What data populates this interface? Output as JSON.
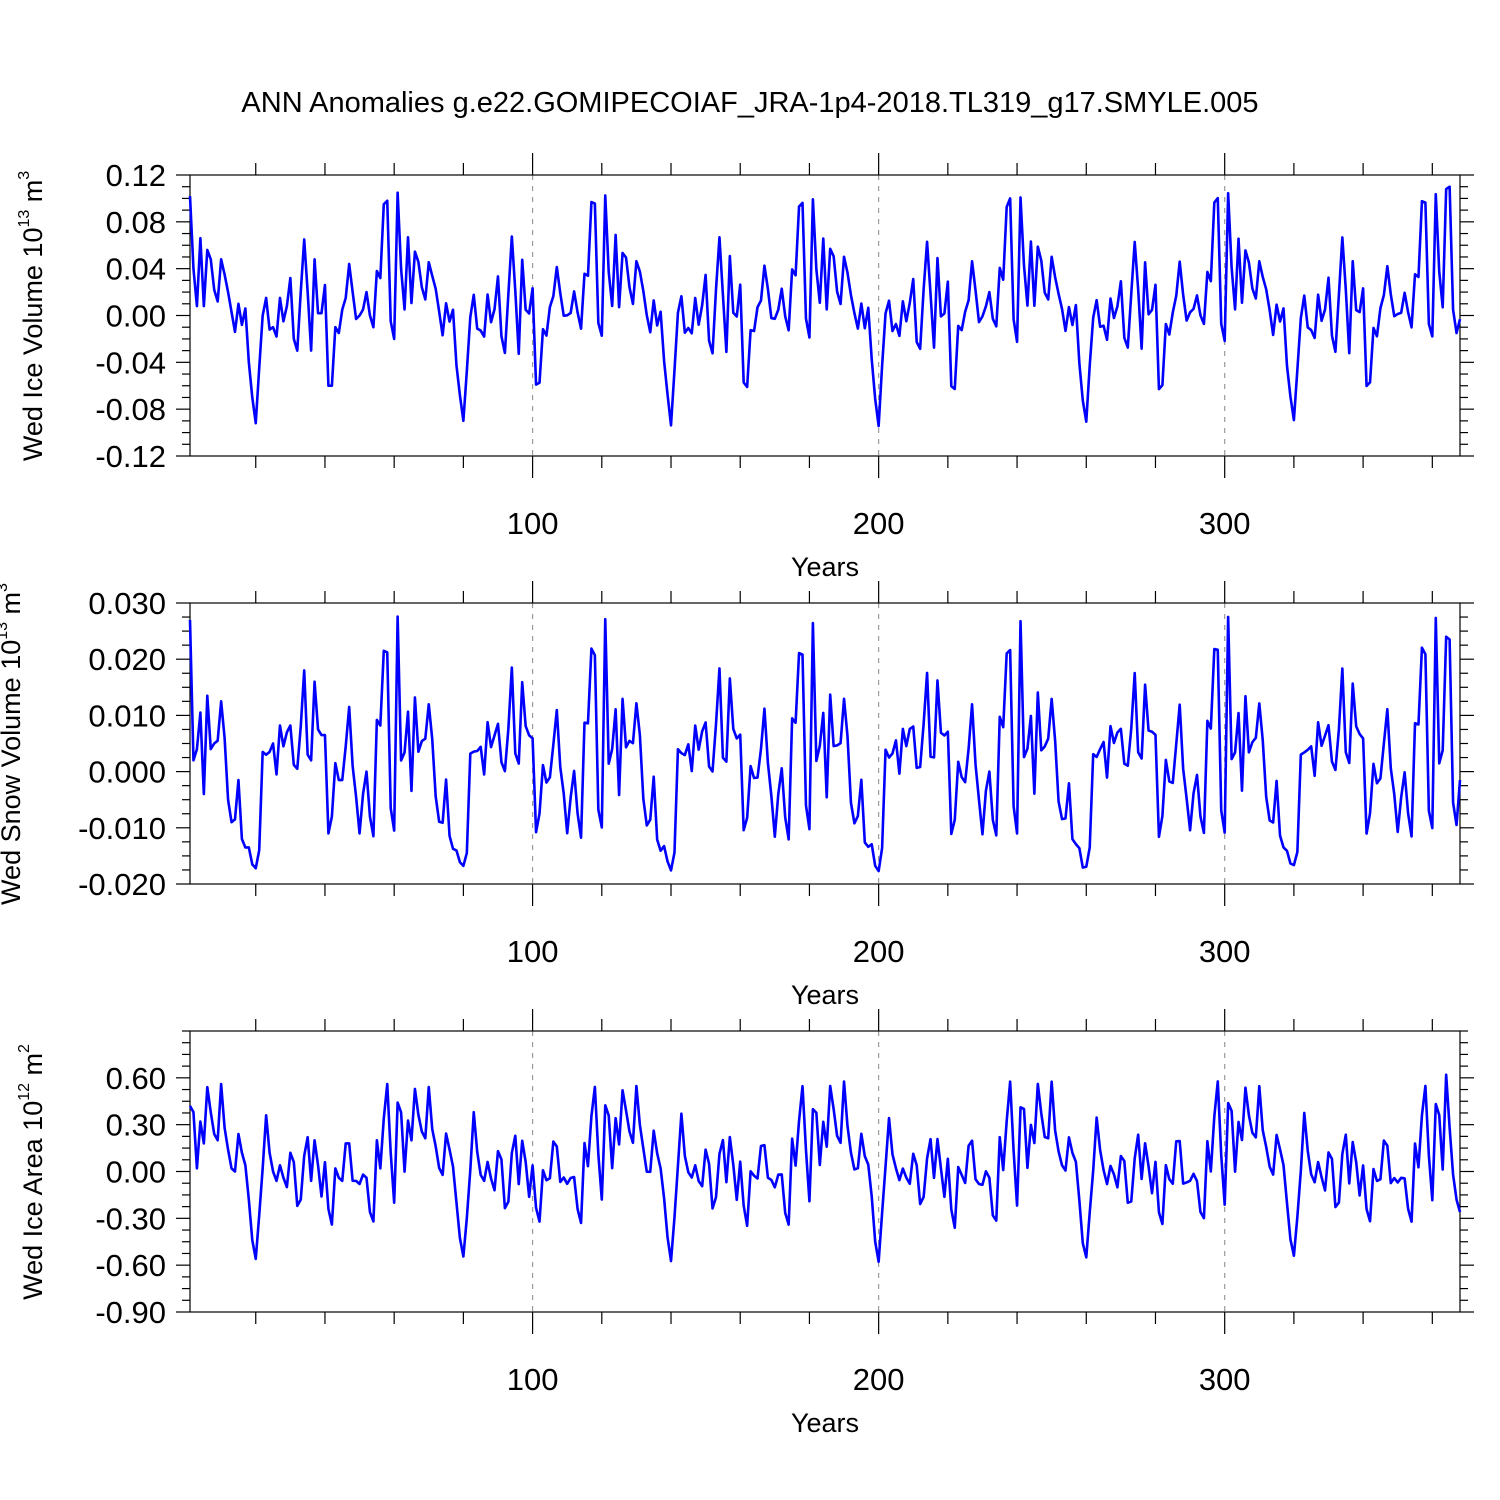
{
  "title": "ANN Anomalies g.e22.GOMIPECOIAF_JRA-1p4-2018.TL319_g17.SMYLE.005",
  "colors": {
    "line": "#0000ff",
    "axis": "#000000",
    "grid": "#9a9a9a"
  },
  "x_axis": {
    "range": [
      1,
      368
    ],
    "ticks": [
      100,
      200,
      300
    ],
    "tick_labels": [
      "100",
      "200",
      "300"
    ],
    "label": "Years"
  },
  "chart_data": [
    {
      "type": "line",
      "name": "Wed Ice Volume",
      "ylabel": {
        "text": "Wed Ice Volume 10",
        "exp": "13",
        "unit": " m",
        "unit_exp": "3"
      },
      "xlabel": "Years",
      "ylim": [
        -0.12,
        0.12
      ],
      "yticks": [
        -0.12,
        -0.08,
        -0.04,
        0.0,
        0.04,
        0.08,
        0.12
      ],
      "ytick_labels": [
        "-0.12",
        "-0.08",
        "-0.04",
        "0.00",
        "0.04",
        "0.08",
        "0.12"
      ],
      "segment": [
        0.102,
        0.04,
        0.008,
        0.066,
        0.008,
        0.056,
        0.048,
        0.022,
        0.012,
        0.048,
        0.035,
        0.02,
        0.003,
        -0.014,
        0.01,
        -0.008,
        0.006,
        -0.04,
        -0.07,
        -0.092,
        -0.045,
        0.0,
        0.015,
        -0.012,
        -0.01,
        -0.018,
        0.015,
        -0.005,
        0.008,
        0.032,
        -0.02,
        -0.03,
        0.02,
        0.065,
        0.02,
        -0.03,
        0.048,
        0.002,
        0.002,
        0.026,
        -0.06,
        -0.06,
        -0.01,
        -0.015,
        0.005,
        0.015,
        0.044,
        0.02,
        -0.003,
        0.0,
        0.005,
        0.02,
        0.0,
        -0.01,
        0.038,
        0.032,
        0.095,
        0.098,
        -0.005,
        -0.02
      ],
      "ends": [
        0.108,
        0.11,
        0.005,
        -0.015,
        -0.003
      ]
    },
    {
      "type": "line",
      "name": "Wed Snow Volume",
      "ylabel": {
        "text": "Wed Snow Volume 10",
        "exp": "13",
        "unit": " m",
        "unit_exp": "3"
      },
      "xlabel": "Years",
      "ylim": [
        -0.02,
        0.03
      ],
      "yticks": [
        -0.02,
        -0.01,
        0.0,
        0.01,
        0.02,
        0.03
      ],
      "ytick_labels": [
        "-0.020",
        "-0.010",
        "0.000",
        "0.010",
        "0.020",
        "0.030"
      ],
      "segment": [
        0.027,
        0.002,
        0.004,
        0.0105,
        -0.004,
        0.0135,
        0.004,
        0.005,
        0.0055,
        0.0125,
        0.006,
        -0.005,
        -0.009,
        -0.0085,
        -0.0015,
        -0.012,
        -0.0135,
        -0.0135,
        -0.0165,
        -0.0172,
        -0.014,
        0.0035,
        0.003,
        0.0035,
        0.005,
        -0.0005,
        0.0082,
        0.0045,
        0.007,
        0.0082,
        0.0012,
        0.0005,
        0.008,
        0.018,
        0.003,
        0.002,
        0.016,
        0.0075,
        0.0065,
        0.0065,
        -0.011,
        -0.008,
        0.0015,
        -0.0015,
        -0.0015,
        0.0045,
        0.0115,
        0.001,
        -0.0045,
        -0.011,
        -0.004,
        0.0,
        -0.008,
        -0.0115,
        0.0092,
        0.0082,
        0.0215,
        0.0212,
        -0.0065,
        -0.0105
      ],
      "ends": [
        0.024,
        0.0235,
        -0.0055,
        -0.0095,
        -0.0015
      ]
    },
    {
      "type": "line",
      "name": "Wed Ice Area",
      "ylabel": {
        "text": "Wed Ice Area 10",
        "exp": "12",
        "unit": " m",
        "unit_exp": "2"
      },
      "xlabel": "Years",
      "ylim": [
        -0.9,
        0.9
      ],
      "yticks": [
        -0.9,
        -0.6,
        -0.3,
        0.0,
        0.3,
        0.6
      ],
      "ytick_labels": [
        "-0.90",
        "-0.60",
        "-0.30",
        "0.00",
        "0.30",
        "0.60"
      ],
      "segment": [
        0.42,
        0.38,
        0.02,
        0.32,
        0.18,
        0.54,
        0.38,
        0.24,
        0.2,
        0.56,
        0.28,
        0.14,
        0.02,
        0.0,
        0.24,
        0.12,
        0.04,
        -0.18,
        -0.44,
        -0.56,
        -0.28,
        0.02,
        0.36,
        0.12,
        0.0,
        -0.06,
        0.04,
        -0.04,
        -0.1,
        0.12,
        0.06,
        -0.22,
        -0.18,
        0.1,
        0.22,
        -0.06,
        0.2,
        0.04,
        -0.16,
        0.06,
        -0.24,
        -0.34,
        0.02,
        -0.04,
        -0.06,
        0.18,
        0.18,
        -0.06,
        -0.06,
        -0.08,
        -0.02,
        -0.04,
        -0.26,
        -0.32,
        0.2,
        0.02,
        0.34,
        0.56,
        0.12,
        -0.2
      ],
      "ends": [
        0.62,
        0.28,
        -0.02,
        -0.18,
        -0.26
      ]
    }
  ]
}
